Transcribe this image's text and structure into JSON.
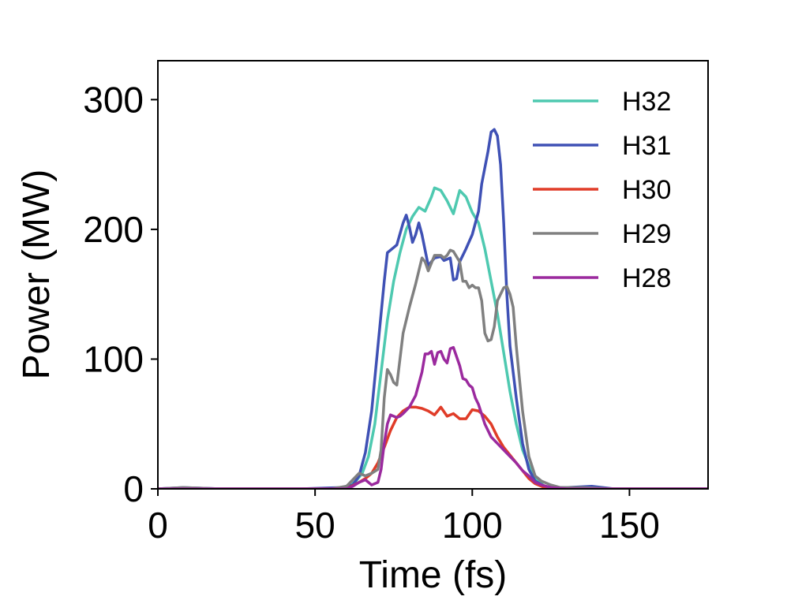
{
  "chart_data": {
    "type": "line",
    "title": "",
    "xlabel": "Time (fs)",
    "ylabel": "Power (MW)",
    "xlim": [
      0,
      175
    ],
    "ylim": [
      0,
      330
    ],
    "xticks": [
      0,
      50,
      100,
      150
    ],
    "yticks": [
      0,
      100,
      200,
      300
    ],
    "grid": false,
    "legend_position": "top-right",
    "series": [
      {
        "name": "H32",
        "color": "#4ec9b0",
        "points": [
          [
            0,
            0
          ],
          [
            55,
            0
          ],
          [
            60,
            1
          ],
          [
            63,
            6
          ],
          [
            65,
            12
          ],
          [
            67,
            25
          ],
          [
            69,
            50
          ],
          [
            71,
            90
          ],
          [
            73,
            130
          ],
          [
            75,
            160
          ],
          [
            77,
            182
          ],
          [
            79,
            200
          ],
          [
            81,
            210
          ],
          [
            83,
            217
          ],
          [
            85,
            214
          ],
          [
            87,
            225
          ],
          [
            88,
            232
          ],
          [
            90,
            230
          ],
          [
            92,
            222
          ],
          [
            94,
            212
          ],
          [
            96,
            230
          ],
          [
            98,
            225
          ],
          [
            100,
            213
          ],
          [
            102,
            205
          ],
          [
            104,
            185
          ],
          [
            106,
            160
          ],
          [
            108,
            135
          ],
          [
            110,
            105
          ],
          [
            112,
            75
          ],
          [
            114,
            50
          ],
          [
            116,
            30
          ],
          [
            118,
            18
          ],
          [
            120,
            8
          ],
          [
            123,
            2
          ],
          [
            127,
            0
          ],
          [
            175,
            0
          ]
        ]
      },
      {
        "name": "H31",
        "color": "#3f51b5",
        "points": [
          [
            0,
            0
          ],
          [
            8,
            1
          ],
          [
            20,
            0
          ],
          [
            45,
            0
          ],
          [
            58,
            1
          ],
          [
            62,
            3
          ],
          [
            64,
            10
          ],
          [
            66,
            28
          ],
          [
            68,
            60
          ],
          [
            70,
            110
          ],
          [
            72,
            160
          ],
          [
            73,
            182
          ],
          [
            75,
            186
          ],
          [
            76,
            188
          ],
          [
            78,
            205
          ],
          [
            79,
            211
          ],
          [
            80,
            202
          ],
          [
            81,
            190
          ],
          [
            82,
            196
          ],
          [
            83,
            205
          ],
          [
            84,
            196
          ],
          [
            86,
            172
          ],
          [
            88,
            178
          ],
          [
            90,
            179
          ],
          [
            91,
            176
          ],
          [
            93,
            178
          ],
          [
            94,
            161
          ],
          [
            95,
            162
          ],
          [
            96,
            175
          ],
          [
            98,
            185
          ],
          [
            100,
            196
          ],
          [
            102,
            214
          ],
          [
            103,
            235
          ],
          [
            105,
            260
          ],
          [
            106,
            275
          ],
          [
            107,
            277
          ],
          [
            108,
            272
          ],
          [
            109,
            250
          ],
          [
            110,
            205
          ],
          [
            111,
            150
          ],
          [
            112,
            110
          ],
          [
            114,
            70
          ],
          [
            116,
            35
          ],
          [
            118,
            15
          ],
          [
            120,
            6
          ],
          [
            123,
            2
          ],
          [
            126,
            1
          ],
          [
            130,
            1
          ],
          [
            138,
            2
          ],
          [
            145,
            0
          ],
          [
            175,
            0
          ]
        ]
      },
      {
        "name": "H30",
        "color": "#e03c28",
        "points": [
          [
            0,
            0
          ],
          [
            60,
            0
          ],
          [
            64,
            5
          ],
          [
            66,
            8
          ],
          [
            68,
            12
          ],
          [
            70,
            20
          ],
          [
            72,
            32
          ],
          [
            74,
            45
          ],
          [
            76,
            55
          ],
          [
            78,
            60
          ],
          [
            80,
            63
          ],
          [
            82,
            63
          ],
          [
            84,
            62
          ],
          [
            86,
            60
          ],
          [
            88,
            57
          ],
          [
            90,
            63
          ],
          [
            92,
            56
          ],
          [
            94,
            58
          ],
          [
            96,
            54
          ],
          [
            98,
            54
          ],
          [
            100,
            61
          ],
          [
            102,
            60
          ],
          [
            104,
            56
          ],
          [
            106,
            50
          ],
          [
            108,
            40
          ],
          [
            110,
            32
          ],
          [
            112,
            26
          ],
          [
            114,
            20
          ],
          [
            116,
            14
          ],
          [
            118,
            8
          ],
          [
            120,
            4
          ],
          [
            123,
            1
          ],
          [
            126,
            0
          ],
          [
            175,
            0
          ]
        ]
      },
      {
        "name": "H29",
        "color": "#808080",
        "points": [
          [
            0,
            0
          ],
          [
            8,
            1
          ],
          [
            20,
            0
          ],
          [
            55,
            0
          ],
          [
            60,
            2
          ],
          [
            62,
            7
          ],
          [
            64,
            12
          ],
          [
            66,
            10
          ],
          [
            68,
            12
          ],
          [
            70,
            15
          ],
          [
            71,
            30
          ],
          [
            72,
            70
          ],
          [
            73,
            92
          ],
          [
            74,
            88
          ],
          [
            75,
            82
          ],
          [
            76,
            80
          ],
          [
            77,
            100
          ],
          [
            78,
            120
          ],
          [
            80,
            140
          ],
          [
            82,
            158
          ],
          [
            84,
            178
          ],
          [
            85,
            175
          ],
          [
            86,
            168
          ],
          [
            88,
            180
          ],
          [
            90,
            180
          ],
          [
            91,
            178
          ],
          [
            92,
            180
          ],
          [
            93,
            184
          ],
          [
            94,
            183
          ],
          [
            96,
            175
          ],
          [
            97,
            160
          ],
          [
            98,
            160
          ],
          [
            99,
            155
          ],
          [
            100,
            157
          ],
          [
            101,
            155
          ],
          [
            102,
            155
          ],
          [
            103,
            145
          ],
          [
            104,
            120
          ],
          [
            105,
            114
          ],
          [
            106,
            115
          ],
          [
            107,
            125
          ],
          [
            108,
            145
          ],
          [
            110,
            155
          ],
          [
            111,
            156
          ],
          [
            112,
            150
          ],
          [
            113,
            140
          ],
          [
            114,
            110
          ],
          [
            116,
            60
          ],
          [
            118,
            25
          ],
          [
            120,
            10
          ],
          [
            122,
            6
          ],
          [
            125,
            3
          ],
          [
            128,
            1
          ],
          [
            135,
            1
          ],
          [
            145,
            0
          ],
          [
            170,
            0
          ],
          [
            175,
            0
          ]
        ]
      },
      {
        "name": "H28",
        "color": "#9b2a9e",
        "points": [
          [
            0,
            0
          ],
          [
            8,
            0
          ],
          [
            20,
            0
          ],
          [
            60,
            0
          ],
          [
            62,
            2
          ],
          [
            64,
            5
          ],
          [
            66,
            7
          ],
          [
            68,
            3
          ],
          [
            70,
            5
          ],
          [
            71,
            15
          ],
          [
            72,
            35
          ],
          [
            73,
            50
          ],
          [
            74,
            57
          ],
          [
            75,
            56
          ],
          [
            76,
            55
          ],
          [
            77,
            56
          ],
          [
            78,
            58
          ],
          [
            80,
            63
          ],
          [
            82,
            72
          ],
          [
            84,
            90
          ],
          [
            85,
            104
          ],
          [
            86,
            104
          ],
          [
            87,
            106
          ],
          [
            88,
            96
          ],
          [
            89,
            105
          ],
          [
            90,
            106
          ],
          [
            91,
            100
          ],
          [
            92,
            97
          ],
          [
            93,
            108
          ],
          [
            94,
            109
          ],
          [
            95,
            102
          ],
          [
            96,
            95
          ],
          [
            97,
            85
          ],
          [
            98,
            84
          ],
          [
            99,
            80
          ],
          [
            100,
            78
          ],
          [
            101,
            70
          ],
          [
            102,
            65
          ],
          [
            104,
            50
          ],
          [
            106,
            40
          ],
          [
            108,
            35
          ],
          [
            110,
            30
          ],
          [
            112,
            25
          ],
          [
            114,
            20
          ],
          [
            116,
            14
          ],
          [
            118,
            10
          ],
          [
            120,
            5
          ],
          [
            122,
            3
          ],
          [
            125,
            1
          ],
          [
            130,
            0
          ],
          [
            175,
            0
          ]
        ]
      }
    ]
  }
}
